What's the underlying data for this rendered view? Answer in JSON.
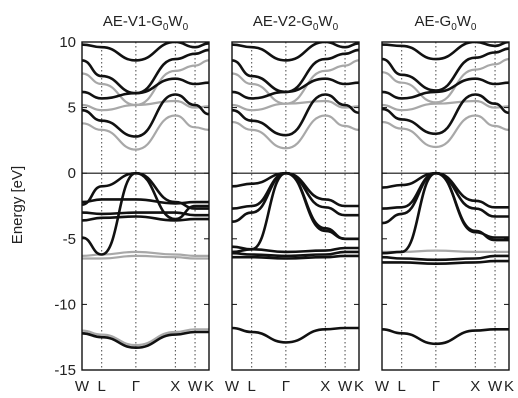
{
  "chart_data": {
    "type": "line",
    "ylabel": "Energy [eV]",
    "ylim": [
      -15,
      10
    ],
    "yticks": [
      10,
      5,
      0,
      -5,
      -10,
      -15
    ],
    "kpath": [
      "W",
      "L",
      "Γ",
      "X",
      "W",
      "K"
    ],
    "kpos": [
      0,
      0.5,
      1.366,
      2.366,
      2.866,
      3.22
    ],
    "colors": {
      "black_bands": "#111111",
      "gray_bands": "#a8a8a8"
    },
    "panels": [
      {
        "title": {
          "main": "AE-V1-G",
          "sub1": "0",
          "mid": "W",
          "sub2": "0"
        },
        "bands": [
          {
            "color": "black",
            "x": [
              0,
              0.5,
              1.366,
              2.366,
              2.866,
              3.22
            ],
            "y": [
              -12.2,
              -12.5,
              -13.3,
              -12.3,
              -12.1,
              -12.1
            ]
          },
          {
            "color": "gray",
            "x": [
              0,
              0.5,
              1.366,
              2.366,
              2.866,
              3.22
            ],
            "y": [
              -12.0,
              -12.3,
              -13.1,
              -12.1,
              -11.9,
              -11.9
            ]
          },
          {
            "color": "gray",
            "x": [
              0,
              0.5,
              1.366,
              2.366,
              2.866,
              3.22
            ],
            "y": [
              -6.3,
              -6.2,
              -6.0,
              -6.2,
              -6.3,
              -6.3
            ]
          },
          {
            "color": "gray",
            "x": [
              0,
              0.5,
              1.366,
              2.366,
              2.866,
              3.22
            ],
            "y": [
              -6.5,
              -6.5,
              -6.3,
              -6.4,
              -6.5,
              -6.5
            ]
          },
          {
            "color": "black",
            "x": [
              0,
              0.5,
              1.366,
              2.366,
              2.866,
              3.22
            ],
            "y": [
              -4.9,
              -6.2,
              0.0,
              -3.5,
              -2.5,
              -2.5
            ]
          },
          {
            "color": "black",
            "x": [
              0,
              0.5,
              1.366,
              2.366,
              2.866,
              3.22
            ],
            "y": [
              -2.4,
              -1.0,
              0.0,
              -2.2,
              -2.7,
              -2.7
            ]
          },
          {
            "color": "black",
            "x": [
              0,
              0.5,
              1.366,
              2.366,
              2.866,
              3.22
            ],
            "y": [
              -3.0,
              -3.1,
              -3.0,
              -3.0,
              -3.2,
              -3.2
            ]
          },
          {
            "color": "black",
            "x": [
              0,
              0.5,
              1.366,
              2.366,
              2.866,
              3.22
            ],
            "y": [
              -3.6,
              -3.4,
              -3.3,
              -3.6,
              -3.5,
              -3.5
            ]
          },
          {
            "color": "black",
            "x": [
              0,
              0.5,
              1.366,
              2.366,
              2.866,
              3.22
            ],
            "y": [
              -2.2,
              -2.0,
              -2.0,
              -2.3,
              -2.2,
              -2.2
            ]
          },
          {
            "color": "black",
            "x": [
              0,
              0.5,
              1.366,
              2.366,
              2.866,
              3.22
            ],
            "y": [
              4.8,
              4.0,
              2.8,
              6.0,
              5.2,
              4.5
            ]
          },
          {
            "color": "gray",
            "x": [
              0,
              0.5,
              1.366,
              2.366,
              2.866,
              3.22
            ],
            "y": [
              3.8,
              3.3,
              1.8,
              4.4,
              3.5,
              3.3
            ]
          },
          {
            "color": "black",
            "x": [
              0,
              0.5,
              1.366,
              2.366,
              2.866,
              3.22
            ],
            "y": [
              6.2,
              5.7,
              6.1,
              7.2,
              6.8,
              6.9
            ]
          },
          {
            "color": "gray",
            "x": [
              0,
              0.5,
              1.366,
              2.366,
              2.866,
              3.22
            ],
            "y": [
              5.2,
              4.8,
              5.2,
              5.5,
              5.0,
              5.1
            ]
          },
          {
            "color": "black",
            "x": [
              0,
              0.5,
              1.366,
              2.366,
              2.866,
              3.22
            ],
            "y": [
              8.6,
              7.4,
              6.1,
              8.7,
              9.1,
              9.4
            ]
          },
          {
            "color": "gray",
            "x": [
              0,
              0.5,
              1.366,
              2.366,
              2.866,
              3.22
            ],
            "y": [
              7.6,
              6.8,
              5.2,
              7.8,
              8.2,
              8.6
            ]
          },
          {
            "color": "black",
            "x": [
              0,
              0.5,
              1.366,
              2.366,
              2.866,
              3.22
            ],
            "y": [
              9.8,
              9.6,
              8.6,
              10.0,
              9.6,
              9.9
            ]
          }
        ]
      },
      {
        "title": {
          "main": "AE-V2-G",
          "sub1": "0",
          "mid": "W",
          "sub2": "0"
        },
        "bands": [
          {
            "color": "black",
            "x": [
              0,
              0.5,
              1.366,
              2.366,
              2.866,
              3.22
            ],
            "y": [
              -11.8,
              -12.1,
              -12.9,
              -11.9,
              -11.8,
              -11.8
            ]
          },
          {
            "color": "black",
            "x": [
              0,
              0.5,
              1.366,
              2.366,
              2.866,
              3.22
            ],
            "y": [
              -5.6,
              -5.8,
              -6.0,
              -5.9,
              -5.7,
              -5.7
            ]
          },
          {
            "color": "black",
            "x": [
              0,
              0.5,
              1.366,
              2.366,
              2.866,
              3.22
            ],
            "y": [
              -6.1,
              -6.2,
              -6.3,
              -6.2,
              -6.0,
              -6.0
            ]
          },
          {
            "color": "black",
            "x": [
              0,
              0.5,
              1.366,
              2.366,
              2.866,
              3.22
            ],
            "y": [
              -6.4,
              -6.4,
              -6.5,
              -6.4,
              -6.3,
              -6.3
            ]
          },
          {
            "color": "black",
            "x": [
              0,
              0.5,
              1.366,
              2.366,
              2.866,
              3.22
            ],
            "y": [
              -6.0,
              -5.8,
              0.0,
              -4.2,
              -5.0,
              -5.0
            ]
          },
          {
            "color": "black",
            "x": [
              0,
              0.5,
              1.366,
              2.366,
              2.866,
              3.22
            ],
            "y": [
              -3.7,
              -3.0,
              0.0,
              -4.4,
              -5.0,
              -5.0
            ]
          },
          {
            "color": "black",
            "x": [
              0,
              0.5,
              1.366,
              2.366,
              2.866,
              3.22
            ],
            "y": [
              -1.0,
              -0.8,
              0.0,
              -2.0,
              -2.5,
              -2.5
            ]
          },
          {
            "color": "black",
            "x": [
              0,
              0.5,
              1.366,
              2.366,
              2.866,
              3.22
            ],
            "y": [
              -2.7,
              -2.5,
              0.0,
              -2.6,
              -3.2,
              -3.2
            ]
          },
          {
            "color": "black",
            "x": [
              0,
              0.5,
              1.366,
              2.366,
              2.866,
              3.22
            ],
            "y": [
              4.8,
              4.0,
              2.9,
              6.0,
              5.2,
              4.6
            ]
          },
          {
            "color": "gray",
            "x": [
              0,
              0.5,
              1.366,
              2.366,
              2.866,
              3.22
            ],
            "y": [
              3.9,
              3.3,
              1.9,
              4.4,
              3.6,
              3.3
            ]
          },
          {
            "color": "black",
            "x": [
              0,
              0.5,
              1.366,
              2.366,
              2.866,
              3.22
            ],
            "y": [
              6.2,
              5.7,
              6.2,
              7.2,
              6.8,
              6.9
            ]
          },
          {
            "color": "gray",
            "x": [
              0,
              0.5,
              1.366,
              2.366,
              2.866,
              3.22
            ],
            "y": [
              5.2,
              4.8,
              5.3,
              5.5,
              5.0,
              5.1
            ]
          },
          {
            "color": "black",
            "x": [
              0,
              0.5,
              1.366,
              2.366,
              2.866,
              3.22
            ],
            "y": [
              8.6,
              7.4,
              6.2,
              8.7,
              9.1,
              9.4
            ]
          },
          {
            "color": "gray",
            "x": [
              0,
              0.5,
              1.366,
              2.366,
              2.866,
              3.22
            ],
            "y": [
              7.6,
              6.8,
              5.3,
              7.8,
              8.2,
              8.6
            ]
          },
          {
            "color": "black",
            "x": [
              0,
              0.5,
              1.366,
              2.366,
              2.866,
              3.22
            ],
            "y": [
              9.8,
              9.6,
              8.6,
              10.0,
              9.6,
              9.9
            ]
          }
        ]
      },
      {
        "title": {
          "main": "AE-G",
          "sub1": "0",
          "mid": "W",
          "sub2": "0"
        },
        "bands": [
          {
            "color": "black",
            "x": [
              0,
              0.5,
              1.366,
              2.366,
              2.866,
              3.22
            ],
            "y": [
              -11.9,
              -12.2,
              -13.0,
              -12.0,
              -11.9,
              -11.9
            ]
          },
          {
            "color": "gray",
            "x": [
              0,
              0.5,
              1.366,
              2.366,
              2.866,
              3.22
            ],
            "y": [
              -6.0,
              -6.0,
              -5.9,
              -6.0,
              -6.0,
              -6.0
            ]
          },
          {
            "color": "black",
            "x": [
              0,
              0.5,
              1.366,
              2.366,
              2.866,
              3.22
            ],
            "y": [
              -6.4,
              -6.5,
              -6.6,
              -6.5,
              -6.3,
              -6.3
            ]
          },
          {
            "color": "black",
            "x": [
              0,
              0.5,
              1.366,
              2.366,
              2.866,
              3.22
            ],
            "y": [
              -6.8,
              -6.8,
              -6.9,
              -6.8,
              -6.7,
              -6.7
            ]
          },
          {
            "color": "black",
            "x": [
              0,
              0.5,
              1.366,
              2.366,
              2.866,
              3.22
            ],
            "y": [
              -6.1,
              -6.0,
              0.0,
              -4.4,
              -5.1,
              -5.1
            ]
          },
          {
            "color": "black",
            "x": [
              0,
              0.5,
              1.366,
              2.366,
              2.866,
              3.22
            ],
            "y": [
              -3.8,
              -3.1,
              0.0,
              -4.5,
              -4.9,
              -4.9
            ]
          },
          {
            "color": "black",
            "x": [
              0,
              0.5,
              1.366,
              2.366,
              2.866,
              3.22
            ],
            "y": [
              -1.1,
              -0.9,
              0.0,
              -2.1,
              -2.6,
              -2.6
            ]
          },
          {
            "color": "black",
            "x": [
              0,
              0.5,
              1.366,
              2.366,
              2.866,
              3.22
            ],
            "y": [
              -2.7,
              -2.6,
              0.0,
              -2.7,
              -3.3,
              -3.3
            ]
          },
          {
            "color": "black",
            "x": [
              0,
              0.5,
              1.366,
              2.366,
              2.866,
              3.22
            ],
            "y": [
              4.9,
              4.1,
              3.0,
              6.0,
              5.3,
              4.6
            ]
          },
          {
            "color": "gray",
            "x": [
              0,
              0.5,
              1.366,
              2.366,
              2.866,
              3.22
            ],
            "y": [
              3.9,
              3.4,
              2.0,
              4.4,
              3.6,
              3.3
            ]
          },
          {
            "color": "black",
            "x": [
              0,
              0.5,
              1.366,
              2.366,
              2.866,
              3.22
            ],
            "y": [
              6.2,
              5.7,
              6.2,
              7.2,
              6.8,
              6.9
            ]
          },
          {
            "color": "gray",
            "x": [
              0,
              0.5,
              1.366,
              2.366,
              2.866,
              3.22
            ],
            "y": [
              5.2,
              4.8,
              5.3,
              5.5,
              5.0,
              5.1
            ]
          },
          {
            "color": "black",
            "x": [
              0,
              0.5,
              1.366,
              2.366,
              2.866,
              3.22
            ],
            "y": [
              8.7,
              7.5,
              6.3,
              8.8,
              9.2,
              9.5
            ]
          },
          {
            "color": "gray",
            "x": [
              0,
              0.5,
              1.366,
              2.366,
              2.866,
              3.22
            ],
            "y": [
              7.7,
              6.9,
              5.4,
              7.9,
              8.3,
              8.7
            ]
          },
          {
            "color": "black",
            "x": [
              0,
              0.5,
              1.366,
              2.366,
              2.866,
              3.22
            ],
            "y": [
              9.8,
              9.7,
              8.7,
              10.0,
              9.7,
              10.0
            ]
          }
        ]
      }
    ]
  }
}
